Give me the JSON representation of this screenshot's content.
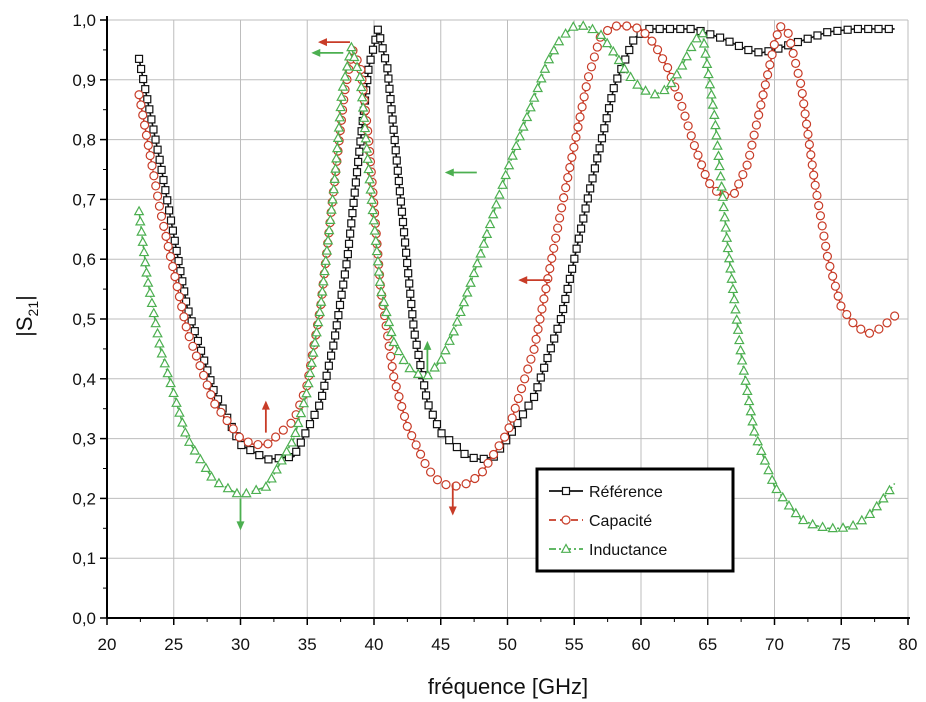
{
  "chart_data": {
    "type": "line",
    "xlabel": "fréquence [GHz]",
    "ylabel_main": "|S",
    "ylabel_sub": "21",
    "ylabel_end": "|",
    "xlim": [
      20,
      80
    ],
    "ylim": [
      0.0,
      1.0
    ],
    "x_ticks": [
      "20",
      "25",
      "30",
      "35",
      "40",
      "45",
      "50",
      "55",
      "60",
      "65",
      "70",
      "75",
      "80"
    ],
    "y_ticks": [
      "0,0",
      "0,1",
      "0,2",
      "0,3",
      "0,4",
      "0,5",
      "0,6",
      "0,7",
      "0,8",
      "0,9",
      "1,0"
    ],
    "grid": true,
    "legend_position": "bottom-center",
    "series": [
      {
        "name": "Référence",
        "color": "#111111",
        "marker": "square",
        "dash": "solid",
        "x": [
          22.4,
          24,
          26,
          28,
          30,
          32,
          34,
          36,
          37,
          38,
          39,
          39.6,
          40.3,
          41,
          42,
          43,
          44,
          45,
          46,
          47,
          48,
          49,
          50,
          52,
          54,
          56,
          58,
          59.5,
          60.5,
          62,
          64,
          66,
          68,
          69,
          70,
          72,
          74,
          76,
          78,
          79
        ],
        "y": [
          0.935,
          0.76,
          0.52,
          0.38,
          0.29,
          0.265,
          0.27,
          0.36,
          0.46,
          0.6,
          0.8,
          0.92,
          0.985,
          0.92,
          0.7,
          0.48,
          0.36,
          0.31,
          0.29,
          0.27,
          0.265,
          0.27,
          0.3,
          0.37,
          0.5,
          0.7,
          0.89,
          0.97,
          0.985,
          0.985,
          0.985,
          0.97,
          0.95,
          0.945,
          0.95,
          0.965,
          0.98,
          0.985,
          0.985,
          0.985
        ]
      },
      {
        "name": "Capacité",
        "color": "#c83c28",
        "marker": "circle",
        "dash": "dashed",
        "x": [
          22.4,
          24,
          26,
          28,
          30,
          31,
          32,
          34,
          35,
          36,
          37,
          37.8,
          38.4,
          39,
          39.6,
          40.5,
          41.5,
          42.5,
          44,
          45,
          46,
          47,
          48,
          50,
          52,
          54,
          56,
          57,
          58,
          59,
          60,
          61,
          62,
          63,
          64,
          65,
          66,
          67,
          68,
          69,
          70,
          70.4,
          71,
          72,
          73,
          74,
          75,
          76,
          77,
          78,
          79
        ],
        "y": [
          0.875,
          0.68,
          0.48,
          0.36,
          0.3,
          0.29,
          0.29,
          0.33,
          0.39,
          0.52,
          0.72,
          0.88,
          0.95,
          0.92,
          0.8,
          0.55,
          0.4,
          0.32,
          0.25,
          0.225,
          0.22,
          0.225,
          0.24,
          0.31,
          0.45,
          0.68,
          0.9,
          0.975,
          0.99,
          0.99,
          0.985,
          0.96,
          0.92,
          0.86,
          0.79,
          0.73,
          0.705,
          0.71,
          0.76,
          0.86,
          0.96,
          0.99,
          0.98,
          0.89,
          0.73,
          0.6,
          0.52,
          0.49,
          0.475,
          0.485,
          0.505
        ]
      },
      {
        "name": "Inductance",
        "color": "#4caf50",
        "marker": "triangle",
        "dash": "dashdot",
        "x": [
          22.4,
          23,
          24,
          26,
          28,
          30,
          32,
          34,
          35,
          36,
          37,
          37.6,
          38.3,
          39,
          39.6,
          40.5,
          41.5,
          42.5,
          43.5,
          44,
          45,
          46,
          48,
          50,
          52,
          53,
          54,
          55,
          56,
          57,
          58,
          59,
          60,
          61,
          62,
          63,
          64,
          64.6,
          65.5,
          66.5,
          67.5,
          68.5,
          70,
          71,
          72,
          73,
          74,
          75,
          76,
          77,
          78,
          79
        ],
        "y": [
          0.68,
          0.57,
          0.45,
          0.3,
          0.23,
          0.205,
          0.22,
          0.3,
          0.38,
          0.52,
          0.72,
          0.88,
          0.955,
          0.9,
          0.75,
          0.55,
          0.46,
          0.42,
          0.405,
          0.405,
          0.43,
          0.48,
          0.61,
          0.75,
          0.87,
          0.93,
          0.97,
          0.99,
          0.99,
          0.975,
          0.945,
          0.91,
          0.885,
          0.875,
          0.885,
          0.92,
          0.965,
          0.98,
          0.84,
          0.62,
          0.44,
          0.31,
          0.22,
          0.19,
          0.165,
          0.155,
          0.15,
          0.15,
          0.155,
          0.17,
          0.195,
          0.225
        ]
      }
    ],
    "annotations": [
      {
        "color": "#4caf50",
        "x": 37.7,
        "y": 0.945,
        "direction": "left"
      },
      {
        "color": "#c83c28",
        "x": 38.2,
        "y": 0.963,
        "direction": "left"
      },
      {
        "color": "#4caf50",
        "x": 47.7,
        "y": 0.745,
        "direction": "left"
      },
      {
        "color": "#c83c28",
        "x": 53.2,
        "y": 0.565,
        "direction": "left"
      },
      {
        "color": "#c83c28",
        "x": 31.9,
        "y": 0.31,
        "direction": "up"
      },
      {
        "color": "#4caf50",
        "x": 44.0,
        "y": 0.41,
        "direction": "up"
      },
      {
        "color": "#4caf50",
        "x": 30.0,
        "y": 0.2,
        "direction": "down"
      },
      {
        "color": "#c83c28",
        "x": 45.9,
        "y": 0.225,
        "direction": "down"
      }
    ]
  }
}
